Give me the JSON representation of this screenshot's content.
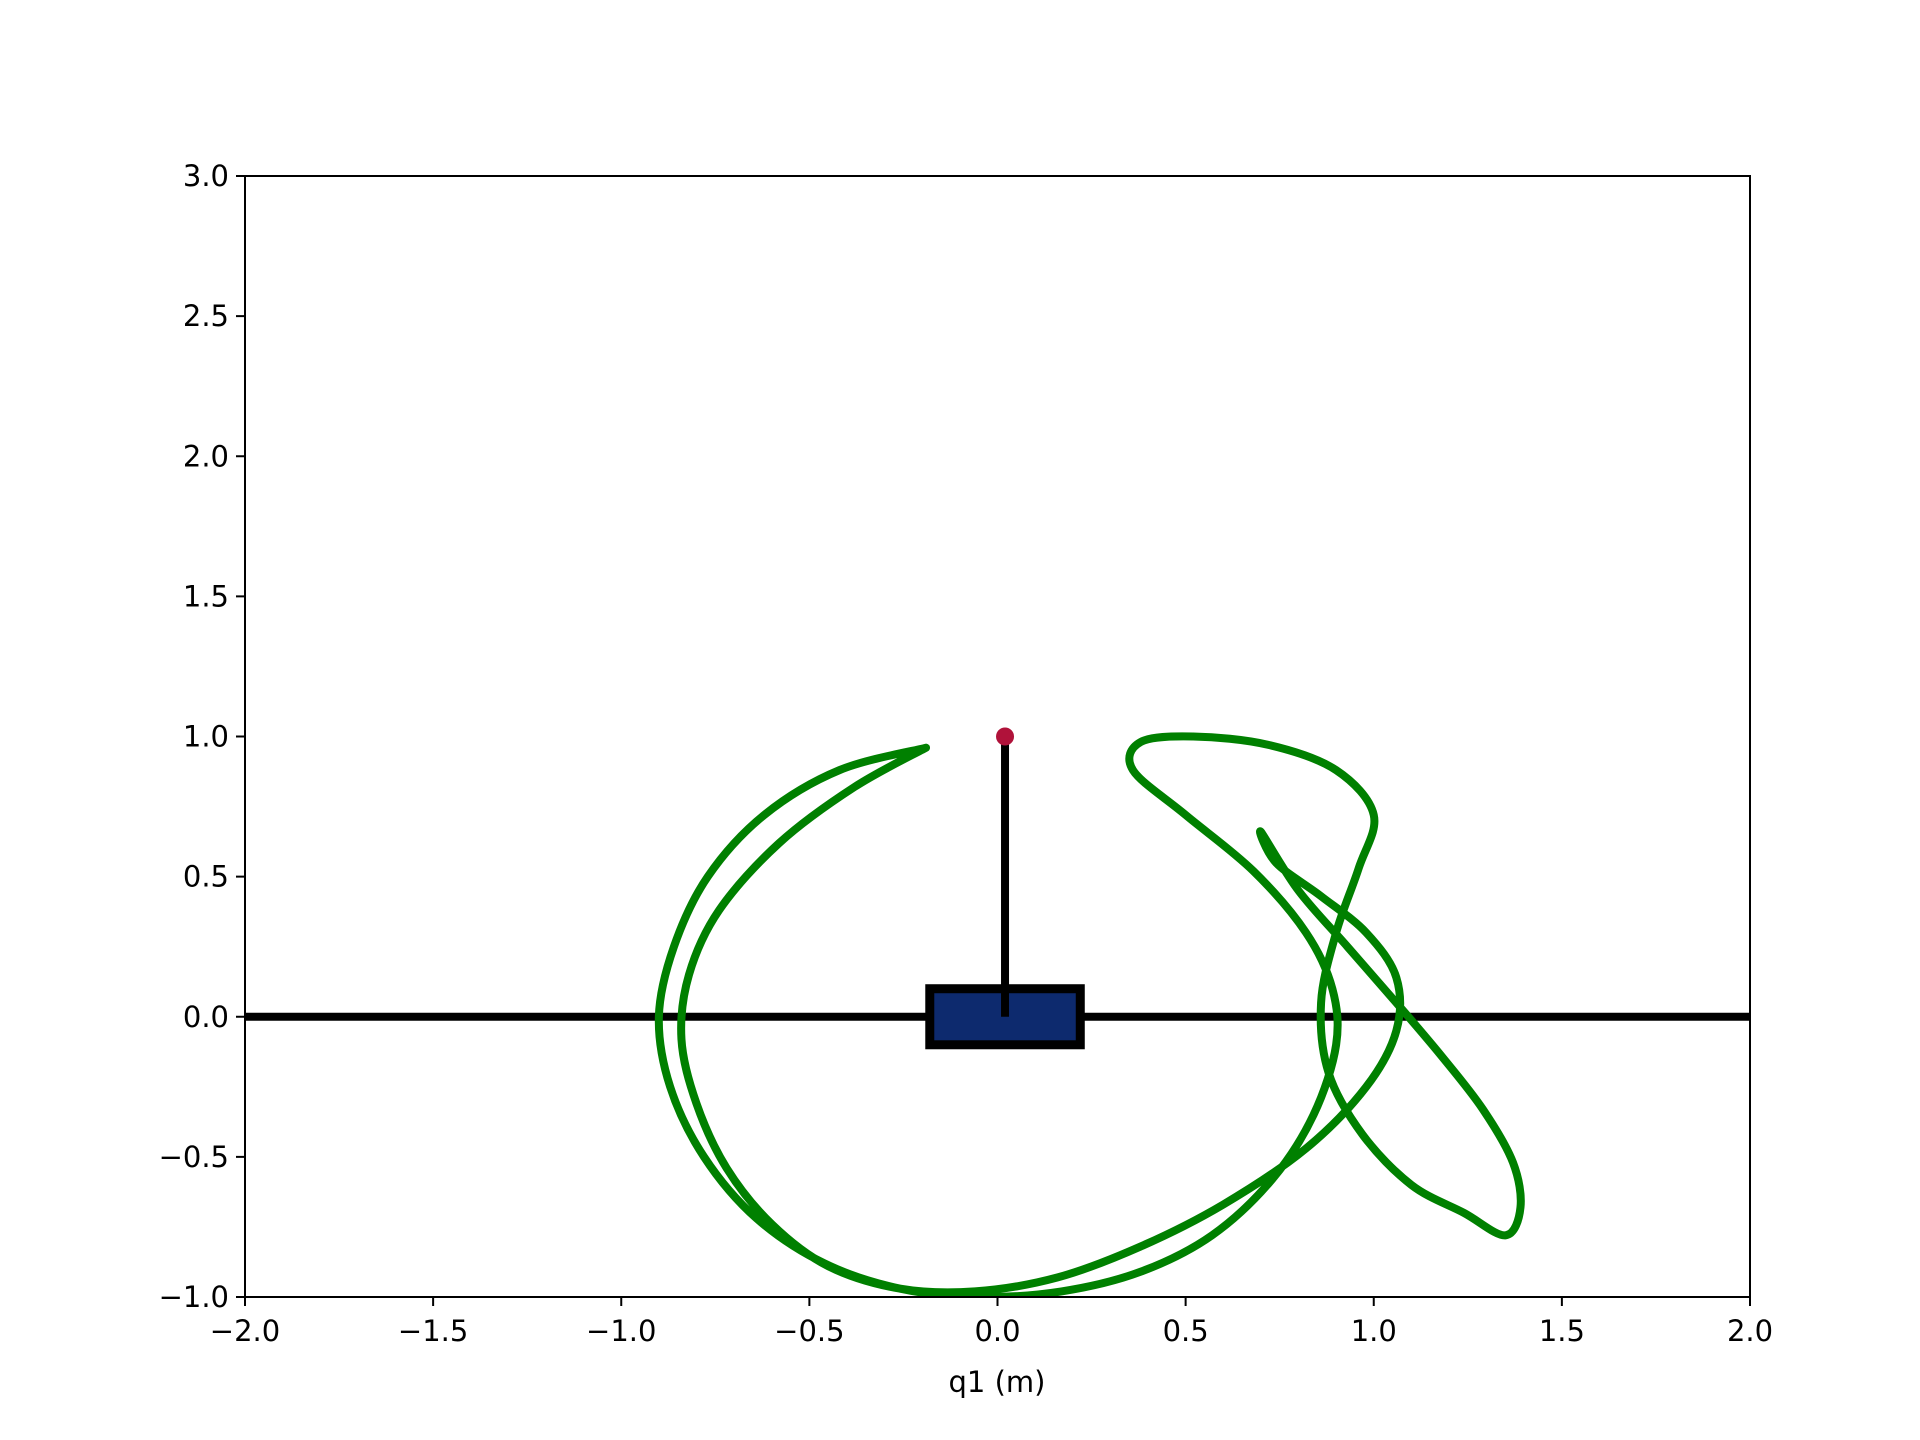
{
  "chart_data": {
    "type": "line",
    "title": "",
    "xlabel": "q1 (m)",
    "ylabel": "",
    "xlim": [
      -2.0,
      2.0
    ],
    "ylim": [
      -1.0,
      3.0
    ],
    "xticks": [
      -2.0,
      -1.5,
      -1.0,
      -0.5,
      0.0,
      0.5,
      1.0,
      1.5,
      2.0
    ],
    "xtick_labels": [
      "−2.0",
      "−1.5",
      "−1.0",
      "−0.5",
      "0.0",
      "0.5",
      "1.0",
      "1.5",
      "2.0"
    ],
    "yticks": [
      -1.0,
      -0.5,
      0.0,
      0.5,
      1.0,
      1.5,
      2.0,
      2.5,
      3.0
    ],
    "ytick_labels": [
      "−1.0",
      "−0.5",
      "0.0",
      "0.5",
      "1.0",
      "1.5",
      "2.0",
      "2.5",
      "3.0"
    ],
    "grid": false,
    "track": {
      "y": 0.0,
      "x_range": [
        -2.0,
        2.0
      ],
      "color": "#000000"
    },
    "cart": {
      "center": [
        0.02,
        0.0
      ],
      "width": 0.4,
      "height": 0.2,
      "fill": "#0d2a6e",
      "edge": "#000000"
    },
    "pole": {
      "from": [
        0.02,
        0.0
      ],
      "to": [
        0.02,
        1.0
      ],
      "color": "#000000"
    },
    "tip": {
      "x": 0.02,
      "y": 1.0,
      "color": "#b0123a"
    },
    "series": [
      {
        "color": "#008000",
        "x": [
          -0.19,
          -0.42,
          -0.62,
          -0.77,
          -0.86,
          -0.9,
          -0.87,
          -0.78,
          -0.64,
          -0.46,
          -0.26,
          -0.05,
          0.17,
          0.38,
          0.57,
          0.73,
          0.84,
          0.9,
          0.89,
          0.82,
          0.68,
          0.5,
          0.36,
          0.38,
          0.52,
          0.72,
          0.9,
          1.0,
          0.96,
          0.9,
          0.86,
          0.88,
          0.97,
          1.1,
          1.24,
          1.35,
          1.39,
          1.37,
          1.29,
          1.18,
          1.06,
          0.93,
          0.8,
          0.7,
          0.74,
          0.86,
          0.98,
          1.06,
          1.06,
          0.98,
          0.82,
          0.6,
          0.38,
          0.16,
          -0.06,
          -0.26,
          -0.45,
          -0.6,
          -0.72,
          -0.8,
          -0.84,
          -0.82,
          -0.74,
          -0.58,
          -0.38,
          -0.19
        ],
        "y": [
          0.96,
          0.88,
          0.72,
          0.5,
          0.25,
          0.0,
          -0.25,
          -0.5,
          -0.72,
          -0.88,
          -0.97,
          -1.0,
          -0.98,
          -0.91,
          -0.78,
          -0.58,
          -0.35,
          -0.1,
          0.1,
          0.3,
          0.52,
          0.72,
          0.88,
          0.98,
          1.0,
          0.97,
          0.88,
          0.72,
          0.53,
          0.3,
          0.05,
          -0.2,
          -0.42,
          -0.6,
          -0.7,
          -0.78,
          -0.68,
          -0.52,
          -0.33,
          -0.14,
          0.05,
          0.25,
          0.45,
          0.66,
          0.55,
          0.43,
          0.3,
          0.14,
          -0.05,
          -0.25,
          -0.47,
          -0.67,
          -0.82,
          -0.93,
          -0.98,
          -0.97,
          -0.89,
          -0.74,
          -0.54,
          -0.31,
          -0.08,
          0.15,
          0.38,
          0.62,
          0.82,
          0.96
        ]
      }
    ]
  }
}
